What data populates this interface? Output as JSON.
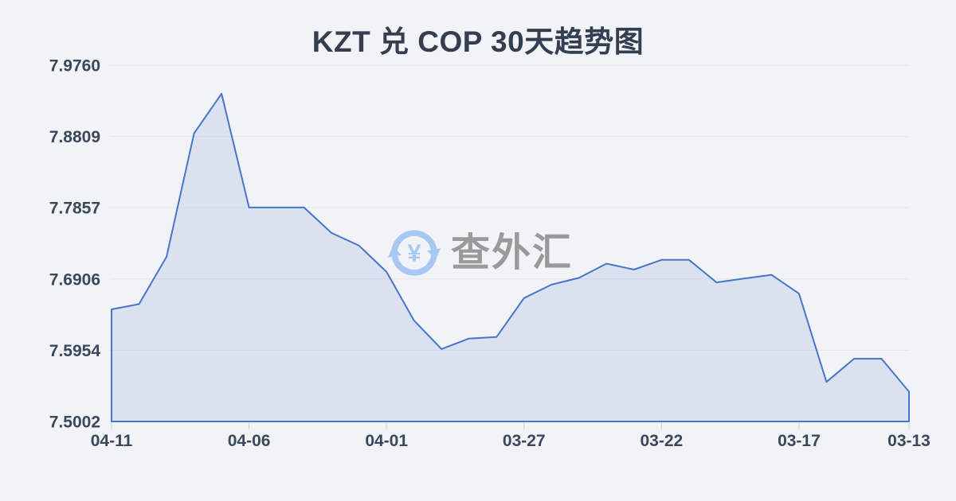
{
  "watermark": {
    "text": "查外汇",
    "icon": "currency-exchange-icon",
    "symbol": "¥"
  },
  "colors": {
    "background": "#f2f3f6",
    "line": "#4a74c8",
    "fill": "rgba(110,147,216,0.18)",
    "gridline": "#e4e7ec",
    "tick": "#c8ccd3",
    "axis_label": "#3a485c",
    "title": "#333e50",
    "watermark_text": "#9a9a9a",
    "watermark_icon": "#a8c7f3"
  },
  "chart_data": {
    "type": "area",
    "title": "KZT 兑 COP 30天趋势图",
    "x": [
      "04-11",
      "04-10",
      "04-09",
      "04-08",
      "04-07",
      "04-06",
      "04-05",
      "04-04",
      "04-03",
      "04-02",
      "04-01",
      "03-31",
      "03-30",
      "03-29",
      "03-28",
      "03-27",
      "03-26",
      "03-25",
      "03-24",
      "03-23",
      "03-22",
      "03-21",
      "03-20",
      "03-19",
      "03-18",
      "03-17",
      "03-16",
      "03-15",
      "03-14",
      "03-13"
    ],
    "values": [
      7.65,
      7.657,
      7.72,
      7.885,
      7.938,
      7.786,
      7.786,
      7.786,
      7.752,
      7.735,
      7.7,
      7.635,
      7.597,
      7.611,
      7.613,
      7.665,
      7.683,
      7.692,
      7.711,
      7.703,
      7.716,
      7.716,
      7.686,
      7.691,
      7.696,
      7.671,
      7.553,
      7.584,
      7.584,
      7.54
    ],
    "xlabel": "",
    "ylabel": "",
    "ylim": [
      7.5002,
      7.976
    ],
    "grid": true,
    "legend": false,
    "y_axis": {
      "min": 7.5002,
      "max": 7.976,
      "ticks": [
        "7.9760",
        "7.8809",
        "7.7857",
        "7.6906",
        "7.5954",
        "7.5002"
      ]
    },
    "x_axis": {
      "labels": [
        "04-11",
        "04-06",
        "04-01",
        "03-27",
        "03-22",
        "03-17",
        "03-13"
      ],
      "label_indices": [
        0,
        5,
        10,
        15,
        20,
        25,
        29
      ]
    }
  }
}
